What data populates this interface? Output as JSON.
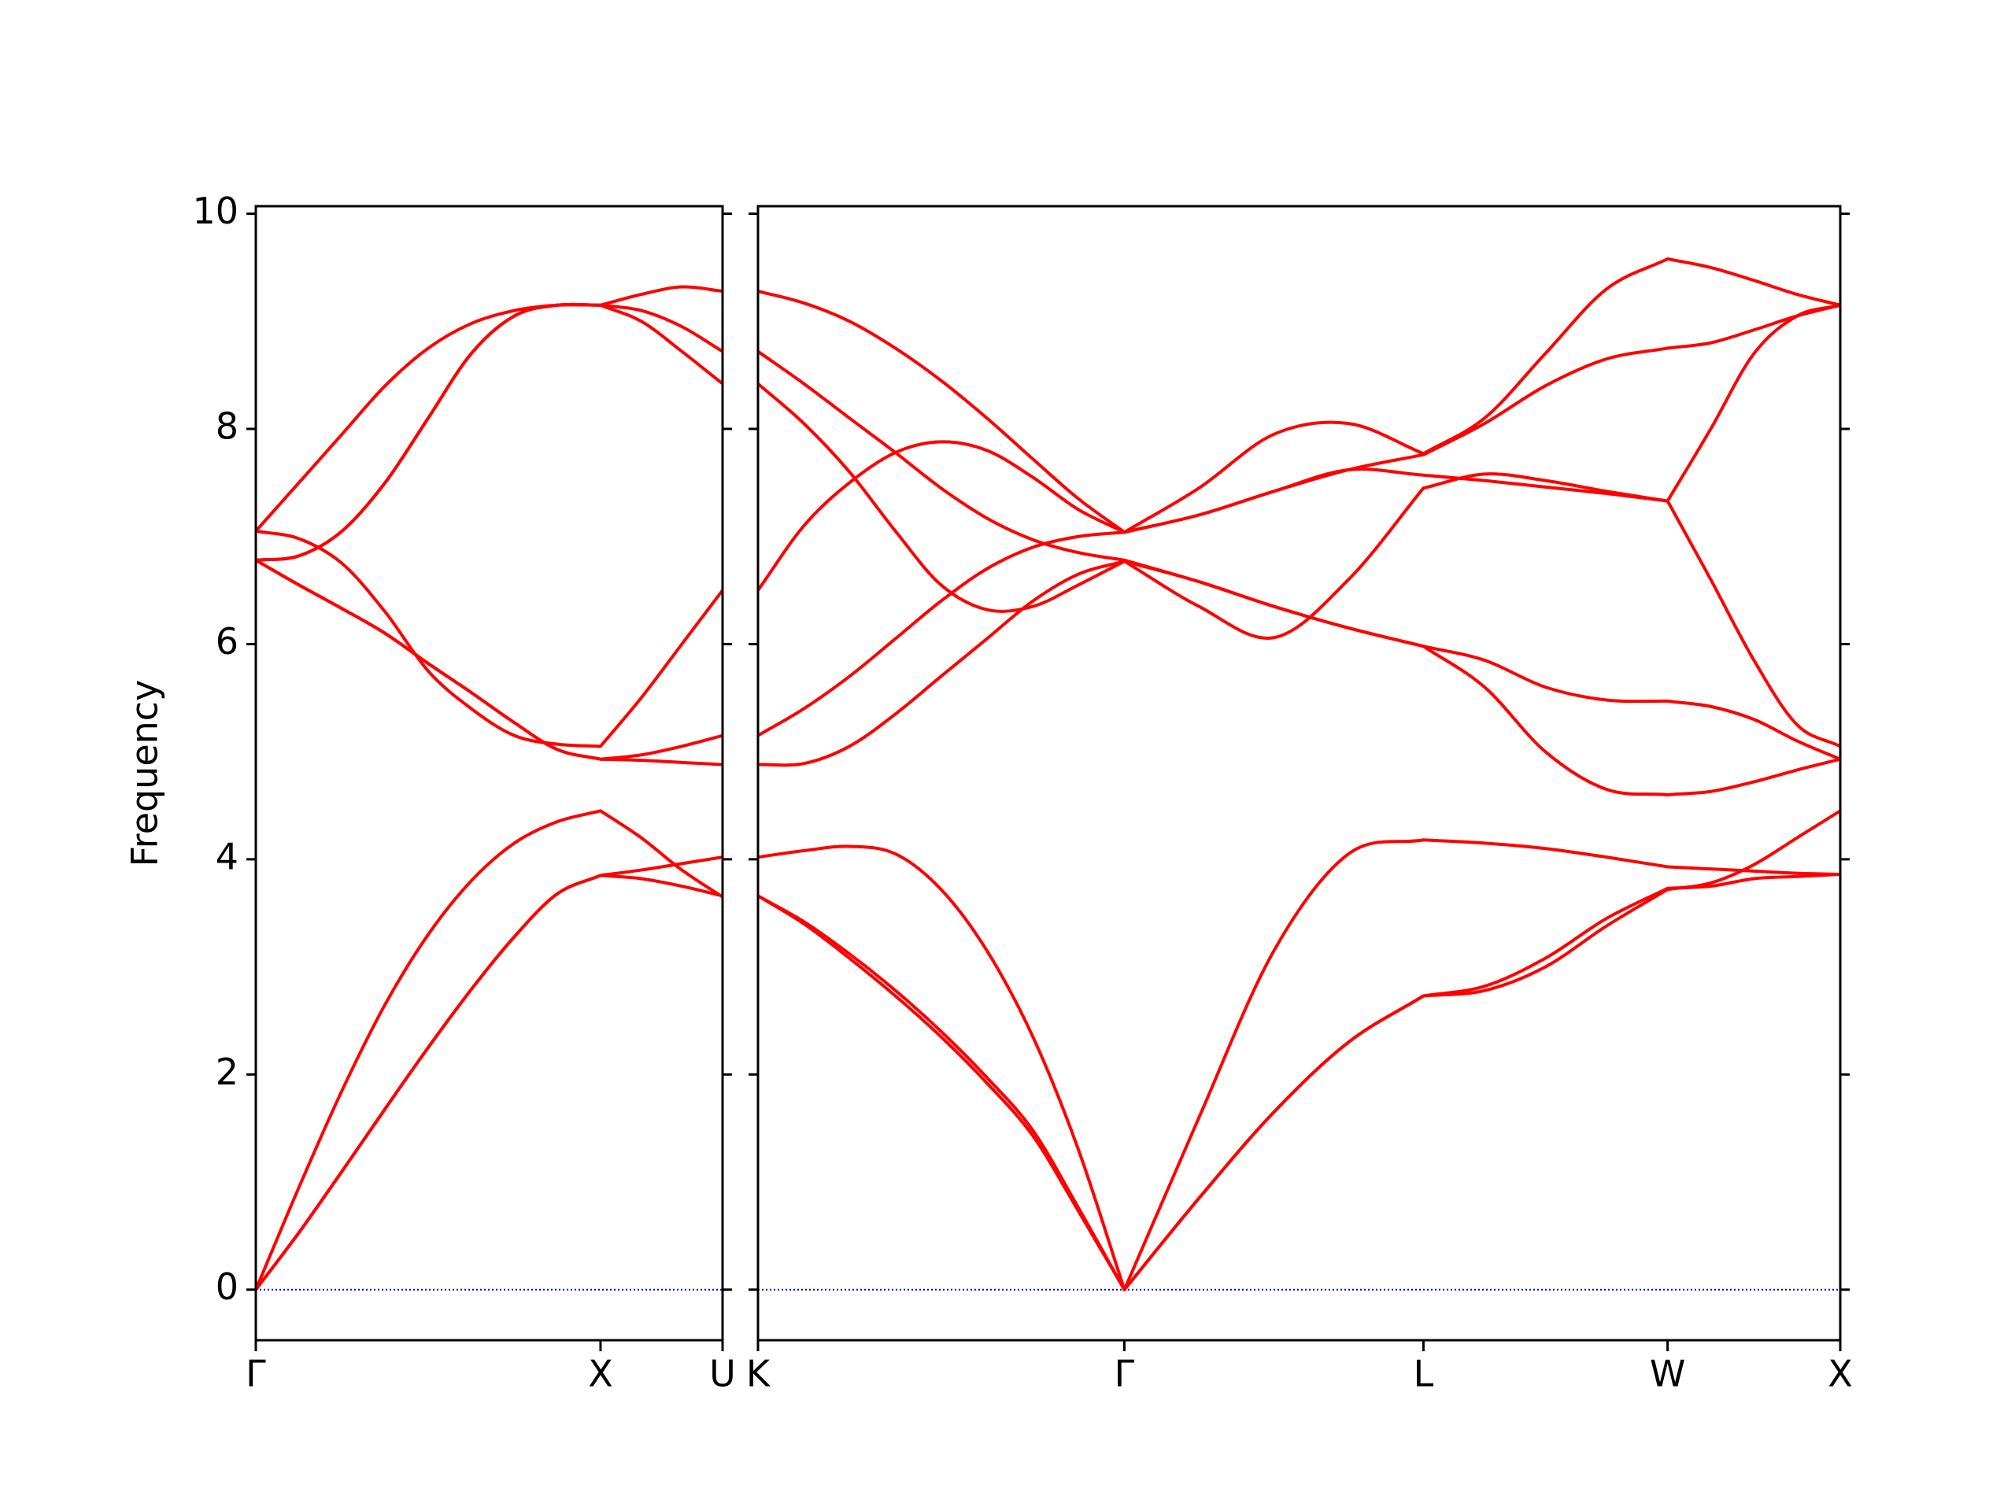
{
  "chart_data": [
    {
      "type": "line",
      "ylabel": "Frequency",
      "color": "#ff0000",
      "x": [
        0,
        0.125,
        0.25,
        0.375,
        0.5,
        0.625,
        0.75,
        0.875,
        1,
        1.118,
        1.236,
        1.354
      ],
      "xlim": [
        0,
        1.354
      ],
      "xticks": [
        {
          "value": 0,
          "label": "Γ"
        },
        {
          "value": 1,
          "label": "X"
        },
        {
          "value": 1.354,
          "label": "U"
        }
      ],
      "ylim": [
        -0.47,
        10.07
      ],
      "yticks": [
        0,
        2,
        4,
        6,
        8,
        10
      ],
      "ytick_labels": true,
      "hline": 0,
      "hline_color": "#0000cc",
      "series": [
        {
          "values": [
            0,
            0.53,
            1.1,
            1.68,
            2.25,
            2.79,
            3.28,
            3.68,
            3.85,
            3.82,
            3.75,
            3.66
          ]
        },
        {
          "values": [
            0,
            0.53,
            1.1,
            1.68,
            2.25,
            2.79,
            3.28,
            3.68,
            3.85,
            3.9,
            3.96,
            4.02
          ]
        },
        {
          "values": [
            0,
            0.95,
            1.85,
            2.65,
            3.3,
            3.8,
            4.15,
            4.35,
            4.45,
            4.2,
            3.9,
            3.65
          ]
        },
        {
          "values": [
            6.78,
            6.55,
            6.33,
            6.1,
            5.82,
            5.55,
            5.27,
            5.02,
            4.93,
            4.97,
            5.05,
            5.15
          ]
        },
        {
          "values": [
            6.78,
            6.55,
            6.33,
            6.1,
            5.82,
            5.55,
            5.27,
            5.02,
            4.93,
            4.92,
            4.9,
            4.88
          ]
        },
        {
          "values": [
            7.05,
            6.98,
            6.75,
            6.3,
            5.75,
            5.4,
            5.15,
            5.07,
            5.05,
            5.5,
            6.0,
            6.5
          ]
        },
        {
          "values": [
            6.78,
            6.82,
            7.05,
            7.5,
            8.1,
            8.7,
            9.05,
            9.15,
            9.15,
            9.1,
            8.95,
            8.72
          ]
        },
        {
          "values": [
            7.05,
            7.5,
            7.95,
            8.4,
            8.75,
            8.98,
            9.1,
            9.15,
            9.15,
            9.25,
            9.32,
            9.28
          ]
        },
        {
          "values": [
            6.78,
            6.82,
            7.05,
            7.5,
            8.1,
            8.7,
            9.05,
            9.15,
            9.15,
            9.0,
            8.72,
            8.42
          ]
        }
      ]
    },
    {
      "type": "line",
      "color": "#ff0000",
      "x": [
        0,
        0.133,
        0.265,
        0.398,
        0.53,
        0.663,
        0.796,
        0.928,
        1.061,
        1.277,
        1.494,
        1.71,
        1.927,
        2.104,
        2.28,
        2.457,
        2.634,
        2.759,
        2.884,
        3.009,
        3.134
      ],
      "xlim": [
        0,
        3.134
      ],
      "xticks": [
        {
          "value": 0,
          "label": "K"
        },
        {
          "value": 1.061,
          "label": "Γ"
        },
        {
          "value": 1.927,
          "label": "L"
        },
        {
          "value": 2.634,
          "label": "W"
        },
        {
          "value": 3.134,
          "label": "X"
        }
      ],
      "ylim": [
        -0.47,
        10.07
      ],
      "yticks": [
        0,
        2,
        4,
        6,
        8,
        10
      ],
      "ytick_labels": false,
      "hline": 0,
      "hline_color": "#0000cc",
      "series": [
        {
          "values": [
            3.66,
            3.42,
            3.12,
            2.78,
            2.4,
            1.97,
            1.48,
            0.76,
            0,
            0.85,
            1.65,
            2.3,
            2.73,
            2.82,
            3.08,
            3.45,
            3.73,
            3.75,
            3.82,
            3.84,
            3.86
          ]
        },
        {
          "values": [
            3.66,
            3.4,
            3.08,
            2.73,
            2.35,
            1.92,
            1.43,
            0.73,
            0,
            0.85,
            1.65,
            2.3,
            2.73,
            2.78,
            3.0,
            3.38,
            3.72,
            3.78,
            3.95,
            4.2,
            4.45
          ]
        },
        {
          "values": [
            4.02,
            4.08,
            4.12,
            4.05,
            3.72,
            3.15,
            2.35,
            1.3,
            0,
            1.6,
            3.15,
            4.05,
            4.18,
            4.15,
            4.1,
            4.02,
            3.93,
            3.91,
            3.89,
            3.87,
            3.86
          ]
        },
        {
          "values": [
            4.88,
            4.89,
            5.05,
            5.35,
            5.7,
            6.05,
            6.4,
            6.65,
            6.77,
            6.58,
            6.35,
            6.15,
            5.98,
            5.6,
            5.0,
            4.65,
            4.6,
            4.63,
            4.72,
            4.83,
            4.93
          ]
        },
        {
          "values": [
            5.15,
            5.4,
            5.7,
            6.05,
            6.4,
            6.7,
            6.9,
            7.0,
            7.04,
            7.2,
            7.42,
            7.62,
            7.76,
            8.05,
            8.4,
            8.65,
            8.75,
            8.8,
            8.92,
            9.05,
            9.15
          ]
        },
        {
          "values": [
            6.5,
            7.1,
            7.5,
            7.78,
            7.88,
            7.8,
            7.55,
            7.25,
            7.04,
            7.45,
            7.95,
            8.05,
            7.77,
            8.1,
            8.7,
            9.3,
            9.58,
            9.5,
            9.38,
            9.25,
            9.15
          ]
        },
        {
          "values": [
            8.42,
            8.05,
            7.6,
            7.05,
            6.55,
            6.32,
            6.35,
            6.55,
            6.77,
            6.35,
            6.06,
            6.6,
            7.45,
            7.58,
            7.52,
            7.42,
            7.33,
            8.0,
            8.7,
            9.05,
            9.15
          ]
        },
        {
          "values": [
            8.72,
            8.42,
            8.1,
            7.78,
            7.45,
            7.17,
            6.97,
            6.85,
            6.78,
            6.58,
            6.35,
            6.15,
            5.98,
            5.85,
            5.6,
            5.48,
            5.47,
            5.42,
            5.3,
            5.1,
            4.93
          ]
        },
        {
          "values": [
            9.28,
            9.17,
            9.0,
            8.75,
            8.45,
            8.1,
            7.72,
            7.35,
            7.04,
            7.2,
            7.42,
            7.62,
            7.57,
            7.52,
            7.46,
            7.4,
            7.33,
            6.6,
            5.85,
            5.25,
            5.05
          ]
        }
      ]
    }
  ]
}
